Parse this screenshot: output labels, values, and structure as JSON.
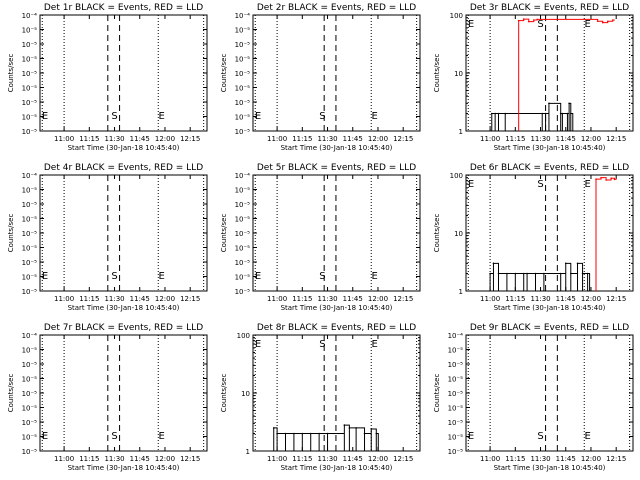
{
  "time_ticks": [
    "11:00",
    "11:15",
    "11:30",
    "11:45",
    "12:00",
    "12:15"
  ],
  "xlabel": "Start Time (30-Jan-18 10:45:40)",
  "ylabel": "Counts/sec",
  "marker_labels": {
    "start": "S",
    "end": "E"
  },
  "colors": {
    "events": "#000000",
    "lld": "#ff0000"
  },
  "chart_data": [
    {
      "type": "line",
      "title": "Det 1r BLACK = Events, RED = LLD",
      "yscale": "log",
      "ylim": [
        1e-05,
        0.0001
      ],
      "y_ticks": [
        "10⁻⁵",
        "10⁻⁵",
        "10⁻⁵",
        "10⁻⁵",
        "10⁻⁵",
        "10⁻⁵",
        "10⁻⁵",
        "10⁻⁵",
        "10⁻⁴"
      ],
      "series": []
    },
    {
      "type": "line",
      "title": "Det 2r BLACK = Events, RED = LLD",
      "yscale": "log",
      "ylim": [
        1e-05,
        0.0001
      ],
      "y_ticks": [
        "10⁻⁵",
        "10⁻⁵",
        "10⁻⁵",
        "10⁻⁵",
        "10⁻⁵",
        "10⁻⁵",
        "10⁻⁵",
        "10⁻⁵",
        "10⁻⁴"
      ],
      "series": []
    },
    {
      "type": "line",
      "title": "Det 3r BLACK = Events, RED = LLD",
      "yscale": "log",
      "ylim": [
        1,
        100
      ],
      "y_ticks": [
        "1",
        "10",
        "100"
      ],
      "series": [
        {
          "color": "events",
          "x": [
            "11:01",
            "11:03",
            "11:05",
            "11:09",
            "11:31",
            "11:33",
            "11:35",
            "11:42",
            "11:43",
            "11:46",
            "11:47",
            "11:48"
          ],
          "y": [
            2,
            2,
            2,
            2,
            2,
            2,
            3,
            2,
            2,
            2,
            3,
            2
          ]
        },
        {
          "color": "lld",
          "x": [
            "11:17",
            "11:20",
            "11:23",
            "11:26",
            "11:28",
            "12:04",
            "12:07",
            "12:10",
            "12:13"
          ],
          "y": [
            80,
            85,
            77,
            82,
            84,
            78,
            74,
            78,
            82
          ]
        }
      ]
    },
    {
      "type": "line",
      "title": "Det 4r BLACK = Events, RED = LLD",
      "yscale": "log",
      "ylim": [
        1e-05,
        0.0001
      ],
      "y_ticks": [
        "10⁻⁵",
        "10⁻⁵",
        "10⁻⁵",
        "10⁻⁵",
        "10⁻⁵",
        "10⁻⁵",
        "10⁻⁵",
        "10⁻⁵",
        "10⁻⁴"
      ],
      "series": []
    },
    {
      "type": "line",
      "title": "Det 5r BLACK = Events, RED = LLD",
      "yscale": "log",
      "ylim": [
        1e-05,
        0.0001
      ],
      "y_ticks": [
        "10⁻⁵",
        "10⁻⁵",
        "10⁻⁵",
        "10⁻⁵",
        "10⁻⁵",
        "10⁻⁵",
        "10⁻⁵",
        "10⁻⁵",
        "10⁻⁴"
      ],
      "series": []
    },
    {
      "type": "line",
      "title": "Det 6r BLACK = Events, RED = LLD",
      "yscale": "log",
      "ylim": [
        1,
        100
      ],
      "y_ticks": [
        "1",
        "10",
        "100"
      ],
      "series": [
        {
          "color": "events",
          "x": [
            "11:00",
            "11:02",
            "11:05",
            "11:10",
            "11:15",
            "11:20",
            "11:22",
            "11:27",
            "11:32",
            "11:42",
            "11:45",
            "11:48",
            "11:52",
            "11:55",
            "11:58"
          ],
          "y": [
            2,
            3,
            2,
            2,
            2,
            2,
            2,
            2,
            2,
            2,
            3,
            2,
            3,
            2,
            2
          ]
        },
        {
          "color": "lld",
          "x": [
            "12:03",
            "12:06",
            "12:09",
            "12:12",
            "12:14"
          ],
          "y": [
            85,
            90,
            82,
            88,
            84
          ]
        }
      ]
    },
    {
      "type": "line",
      "title": "Det 7r BLACK = Events, RED = LLD",
      "yscale": "log",
      "ylim": [
        1e-05,
        0.0001
      ],
      "y_ticks": [
        "10⁻⁵",
        "10⁻⁵",
        "10⁻⁵",
        "10⁻⁵",
        "10⁻⁵",
        "10⁻⁵",
        "10⁻⁵",
        "10⁻⁵",
        "10⁻⁴"
      ],
      "series": []
    },
    {
      "type": "line",
      "title": "Det 8r BLACK = Events, RED = LLD",
      "yscale": "log",
      "ylim": [
        1,
        100
      ],
      "y_ticks": [
        "1",
        "10",
        "100"
      ],
      "series": [
        {
          "color": "events",
          "x": [
            "10:58",
            "11:00",
            "11:05",
            "11:10",
            "11:15",
            "11:20",
            "11:25",
            "11:30",
            "11:40",
            "11:43",
            "11:47",
            "11:52",
            "11:56",
            "11:59"
          ],
          "y": [
            2.5,
            2,
            2,
            2,
            2,
            2,
            2,
            2,
            2.8,
            2.5,
            2.5,
            2,
            2.4,
            2
          ]
        }
      ]
    },
    {
      "type": "line",
      "title": "Det 9r BLACK = Events, RED = LLD",
      "yscale": "log",
      "ylim": [
        1e-05,
        0.0001
      ],
      "y_ticks": [
        "10⁻⁵",
        "10⁻⁵",
        "10⁻⁵",
        "10⁻⁵",
        "10⁻⁵",
        "10⁻⁵",
        "10⁻⁵",
        "10⁻⁵",
        "10⁻⁴"
      ],
      "series": []
    }
  ]
}
